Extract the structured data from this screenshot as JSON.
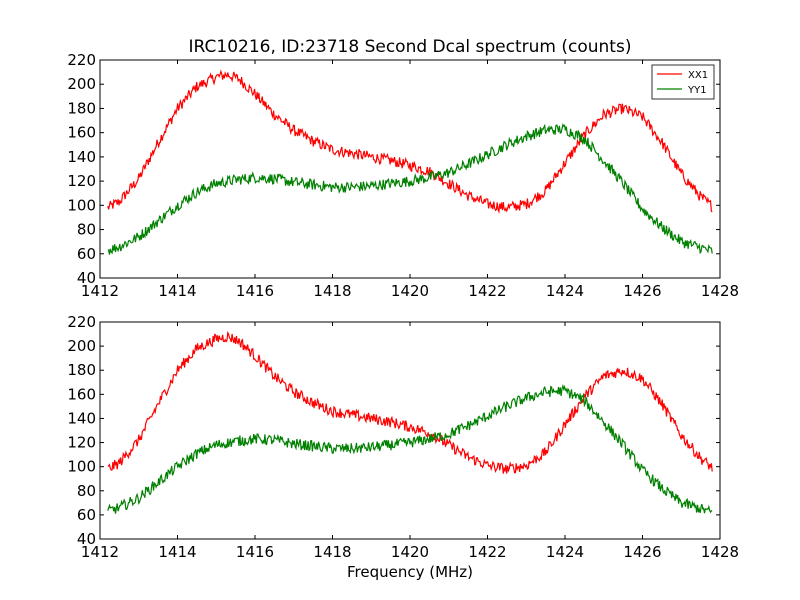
{
  "figure": {
    "title": "IRC10216, ID:23718 Second Dcal spectrum (counts)",
    "xlabel": "Frequency (MHz)"
  },
  "colors": {
    "XX1": "#ff0000",
    "YY1": "#008000",
    "axes": "#000000",
    "background": "#ffffff"
  },
  "chart_data": [
    {
      "type": "line",
      "title": "IRC10216, ID:23718 Second Dcal spectrum (counts)",
      "xlabel": "",
      "ylabel": "",
      "xlim": [
        1412,
        1428
      ],
      "ylim": [
        40,
        220
      ],
      "xticks": [
        "1412",
        "1414",
        "1416",
        "1418",
        "1420",
        "1422",
        "1424",
        "1426",
        "1428"
      ],
      "yticks": [
        "40",
        "60",
        "80",
        "100",
        "120",
        "140",
        "160",
        "180",
        "200",
        "220"
      ],
      "grid": false,
      "legend": {
        "placement": "top-right",
        "entries": [
          "XX1",
          "YY1"
        ]
      },
      "series": [
        {
          "name": "XX1",
          "color": "#ff0000",
          "x": [
            1412.2,
            1412.5,
            1413.0,
            1413.5,
            1414.0,
            1414.5,
            1415.0,
            1415.3,
            1415.6,
            1416.0,
            1416.5,
            1417.0,
            1417.5,
            1418.0,
            1418.5,
            1419.0,
            1419.5,
            1420.0,
            1420.5,
            1421.0,
            1421.5,
            1422.0,
            1422.5,
            1423.0,
            1423.5,
            1424.0,
            1424.5,
            1425.0,
            1425.5,
            1426.0,
            1426.5,
            1427.0,
            1427.5,
            1427.8
          ],
          "values": [
            98,
            103,
            122,
            152,
            180,
            198,
            206,
            208,
            204,
            192,
            175,
            162,
            153,
            146,
            143,
            140,
            137,
            133,
            128,
            118,
            108,
            101,
            98,
            101,
            112,
            135,
            158,
            175,
            180,
            173,
            152,
            126,
            107,
            99
          ]
        },
        {
          "name": "YY1",
          "color": "#008000",
          "x": [
            1412.2,
            1412.5,
            1413.0,
            1413.5,
            1414.0,
            1414.5,
            1415.0,
            1415.5,
            1416.0,
            1416.5,
            1417.0,
            1417.5,
            1418.0,
            1418.5,
            1419.0,
            1419.5,
            1420.0,
            1420.5,
            1421.0,
            1421.5,
            1422.0,
            1422.5,
            1423.0,
            1423.5,
            1424.0,
            1424.5,
            1425.0,
            1425.5,
            1426.0,
            1426.5,
            1427.0,
            1427.5,
            1427.8
          ],
          "values": [
            63,
            66,
            74,
            87,
            100,
            111,
            118,
            121,
            123,
            122,
            119,
            117,
            115,
            115,
            116,
            118,
            120,
            123,
            127,
            134,
            142,
            150,
            157,
            162,
            163,
            155,
            137,
            118,
            97,
            82,
            70,
            65,
            62
          ]
        }
      ]
    },
    {
      "type": "line",
      "title": "",
      "xlabel": "Frequency (MHz)",
      "ylabel": "",
      "xlim": [
        1412,
        1428
      ],
      "ylim": [
        40,
        220
      ],
      "xticks": [
        "1412",
        "1414",
        "1416",
        "1418",
        "1420",
        "1422",
        "1424",
        "1426",
        "1428"
      ],
      "yticks": [
        "40",
        "60",
        "80",
        "100",
        "120",
        "140",
        "160",
        "180",
        "200",
        "220"
      ],
      "grid": false,
      "series": [
        {
          "color": "#ff0000",
          "x": [
            1412.2,
            1412.5,
            1413.0,
            1413.5,
            1414.0,
            1414.5,
            1415.0,
            1415.3,
            1415.6,
            1416.0,
            1416.5,
            1417.0,
            1417.5,
            1418.0,
            1418.5,
            1419.0,
            1419.5,
            1420.0,
            1420.5,
            1421.0,
            1421.5,
            1422.0,
            1422.5,
            1423.0,
            1423.5,
            1424.0,
            1424.5,
            1425.0,
            1425.5,
            1426.0,
            1426.5,
            1427.0,
            1427.5,
            1427.8
          ],
          "values": [
            98,
            103,
            122,
            152,
            180,
            198,
            206,
            208,
            204,
            192,
            175,
            162,
            153,
            146,
            143,
            140,
            137,
            133,
            128,
            118,
            108,
            101,
            98,
            101,
            112,
            135,
            158,
            175,
            180,
            173,
            152,
            126,
            107,
            99
          ]
        },
        {
          "color": "#008000",
          "x": [
            1412.2,
            1412.5,
            1413.0,
            1413.5,
            1414.0,
            1414.5,
            1415.0,
            1415.5,
            1416.0,
            1416.5,
            1417.0,
            1417.5,
            1418.0,
            1418.5,
            1419.0,
            1419.5,
            1420.0,
            1420.5,
            1421.0,
            1421.5,
            1422.0,
            1422.5,
            1423.0,
            1423.5,
            1424.0,
            1424.5,
            1425.0,
            1425.5,
            1426.0,
            1426.5,
            1427.0,
            1427.5,
            1427.8
          ],
          "values": [
            63,
            66,
            74,
            87,
            100,
            111,
            118,
            121,
            123,
            122,
            119,
            117,
            115,
            115,
            116,
            118,
            120,
            123,
            127,
            134,
            142,
            150,
            157,
            162,
            163,
            155,
            137,
            118,
            97,
            82,
            70,
            65,
            62
          ]
        }
      ]
    }
  ]
}
